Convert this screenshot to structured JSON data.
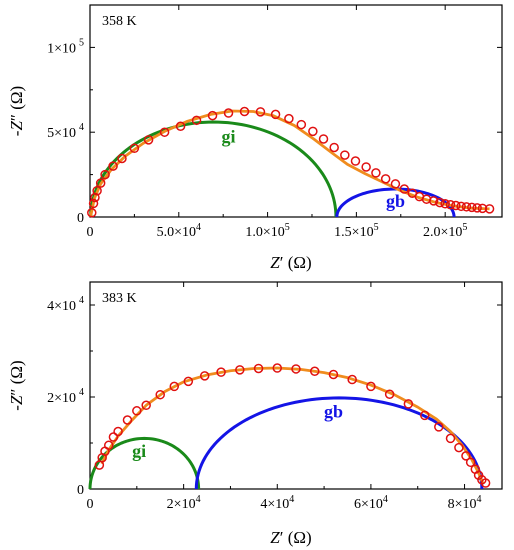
{
  "chart_data": [
    {
      "type": "scatter",
      "panel": "top",
      "annotation": "358 K",
      "xlabel_main": "Z",
      "xlabel_prime": "′",
      "xlabel_unit": "(Ω)",
      "ylabel_main": "-Z",
      "ylabel_prime": "″",
      "ylabel_unit": "(Ω)",
      "xlim": [
        0,
        232000
      ],
      "ylim": [
        0,
        125000
      ],
      "xticks": [
        {
          "value": 0,
          "mant": "0",
          "exp": ""
        },
        {
          "value": 50000,
          "mant": "5.0×10",
          "exp": "4"
        },
        {
          "value": 100000,
          "mant": "1.0×10",
          "exp": "5"
        },
        {
          "value": 150000,
          "mant": "1.5×10",
          "exp": "5"
        },
        {
          "value": 200000,
          "mant": "2.0×10",
          "exp": "5"
        }
      ],
      "yticks": [
        {
          "value": 0,
          "mant": "0",
          "exp": ""
        },
        {
          "value": 50000,
          "mant": "5×10",
          "exp": "4"
        },
        {
          "value": 100000,
          "mant": "1×10",
          "exp": "5"
        }
      ],
      "arcs": [
        {
          "name": "gi",
          "color": "#1a8a1a",
          "center": 69500,
          "radius": 69000,
          "height": 56000,
          "label_x": 78000,
          "label_y": 44000
        },
        {
          "name": "gb",
          "color": "#1414e6",
          "center": 172000,
          "radius": 33000,
          "height": 16500,
          "label_x": 172000,
          "label_y": 6000
        }
      ],
      "fit": {
        "color": "#f08c1e",
        "points": [
          [
            400,
            600
          ],
          [
            2500,
            11000
          ],
          [
            6000,
            19500
          ],
          [
            12000,
            28000
          ],
          [
            20000,
            36000
          ],
          [
            30000,
            43500
          ],
          [
            42000,
            50500
          ],
          [
            55000,
            56500
          ],
          [
            68000,
            60500
          ],
          [
            80000,
            62500
          ],
          [
            92000,
            62200
          ],
          [
            103000,
            59800
          ],
          [
            115000,
            54000
          ],
          [
            126000,
            46000
          ],
          [
            136000,
            38000
          ],
          [
            145000,
            31000
          ],
          [
            155000,
            25500
          ],
          [
            165000,
            20500
          ],
          [
            175000,
            15500
          ],
          [
            185000,
            11500
          ],
          [
            195000,
            8500
          ],
          [
            205000,
            6500
          ],
          [
            215000,
            5200
          ],
          [
            225000,
            4800
          ]
        ]
      },
      "points": [
        [
          1000,
          2500
        ],
        [
          2000,
          8000
        ],
        [
          2800,
          11500
        ],
        [
          4000,
          15500
        ],
        [
          6000,
          20000
        ],
        [
          8500,
          25000
        ],
        [
          13000,
          30000
        ],
        [
          18000,
          34500
        ],
        [
          25000,
          40500
        ],
        [
          33000,
          45500
        ],
        [
          42000,
          50000
        ],
        [
          51000,
          53500
        ],
        [
          60000,
          57000
        ],
        [
          69000,
          59800
        ],
        [
          78000,
          61300
        ],
        [
          87000,
          62200
        ],
        [
          96000,
          62000
        ],
        [
          104500,
          60500
        ],
        [
          112000,
          58000
        ],
        [
          119000,
          54500
        ],
        [
          125500,
          50500
        ],
        [
          131500,
          46000
        ],
        [
          137500,
          41000
        ],
        [
          143500,
          36500
        ],
        [
          149500,
          33000
        ],
        [
          155500,
          29500
        ],
        [
          161000,
          26000
        ],
        [
          166500,
          22500
        ],
        [
          172000,
          19500
        ],
        [
          177000,
          16500
        ],
        [
          181500,
          14000
        ],
        [
          185500,
          12000
        ],
        [
          189500,
          10500
        ],
        [
          193500,
          9500
        ],
        [
          197000,
          8500
        ],
        [
          200000,
          7800
        ],
        [
          203000,
          7200
        ],
        [
          206000,
          6800
        ],
        [
          209000,
          6300
        ],
        [
          212000,
          6000
        ],
        [
          215000,
          5700
        ],
        [
          218000,
          5400
        ],
        [
          221000,
          5100
        ],
        [
          225000,
          4800
        ]
      ],
      "point_color": "#e01010"
    },
    {
      "type": "scatter",
      "panel": "bottom",
      "annotation": "383 K",
      "xlabel_main": "Z",
      "xlabel_prime": "′",
      "xlabel_unit": "(Ω)",
      "ylabel_main": "-Z",
      "ylabel_prime": "″",
      "ylabel_unit": "(Ω)",
      "xlim": [
        0,
        88000
      ],
      "ylim": [
        0,
        45000
      ],
      "xticks": [
        {
          "value": 0,
          "mant": "0",
          "exp": ""
        },
        {
          "value": 20000,
          "mant": "2×10",
          "exp": "4"
        },
        {
          "value": 40000,
          "mant": "4×10",
          "exp": "4"
        },
        {
          "value": 60000,
          "mant": "6×10",
          "exp": "4"
        },
        {
          "value": 80000,
          "mant": "8×10",
          "exp": "4"
        }
      ],
      "yticks": [
        {
          "value": 0,
          "mant": "0",
          "exp": ""
        },
        {
          "value": 20000,
          "mant": "2×10",
          "exp": "4"
        },
        {
          "value": 40000,
          "mant": "4×10",
          "exp": "4"
        }
      ],
      "arcs": [
        {
          "name": "gi",
          "color": "#1a8a1a",
          "center": 11600,
          "radius": 11600,
          "height": 11000,
          "label_x": 10500,
          "label_y": 7000
        },
        {
          "name": "gb",
          "color": "#1414e6",
          "center": 53200,
          "radius": 30500,
          "height": 19800,
          "label_x": 52000,
          "label_y": 15500
        }
      ],
      "fit": {
        "color": "#f08c1e",
        "points": [
          [
            2500,
            5500
          ],
          [
            4000,
            8500
          ],
          [
            6000,
            11500
          ],
          [
            9000,
            15000
          ],
          [
            12000,
            18200
          ],
          [
            16000,
            21200
          ],
          [
            20000,
            23300
          ],
          [
            25000,
            24800
          ],
          [
            30000,
            25700
          ],
          [
            35000,
            26200
          ],
          [
            40000,
            26300
          ],
          [
            45000,
            26000
          ],
          [
            50000,
            25300
          ],
          [
            55000,
            24200
          ],
          [
            60000,
            22600
          ],
          [
            65000,
            20500
          ],
          [
            70000,
            17800
          ],
          [
            74000,
            15200
          ],
          [
            77000,
            12500
          ],
          [
            79500,
            9500
          ],
          [
            81500,
            6500
          ],
          [
            83000,
            3500
          ],
          [
            84000,
            1000
          ]
        ]
      },
      "points": [
        [
          2000,
          5200
        ],
        [
          2600,
          6800
        ],
        [
          3200,
          8200
        ],
        [
          4000,
          9500
        ],
        [
          5000,
          11300
        ],
        [
          6000,
          12500
        ],
        [
          8000,
          15000
        ],
        [
          10000,
          17000
        ],
        [
          12000,
          18200
        ],
        [
          15000,
          20500
        ],
        [
          18000,
          22300
        ],
        [
          21000,
          23400
        ],
        [
          24500,
          24600
        ],
        [
          28000,
          25400
        ],
        [
          32000,
          25900
        ],
        [
          36000,
          26200
        ],
        [
          40000,
          26300
        ],
        [
          44000,
          26100
        ],
        [
          48000,
          25600
        ],
        [
          52000,
          24900
        ],
        [
          56000,
          23800
        ],
        [
          60000,
          22300
        ],
        [
          64000,
          20600
        ],
        [
          68000,
          18500
        ],
        [
          71500,
          16000
        ],
        [
          74500,
          13500
        ],
        [
          77000,
          11000
        ],
        [
          78800,
          9000
        ],
        [
          80300,
          7200
        ],
        [
          81300,
          5800
        ],
        [
          82300,
          4300
        ],
        [
          83000,
          3000
        ],
        [
          83700,
          2000
        ],
        [
          84500,
          1300
        ]
      ],
      "point_color": "#e01010"
    }
  ]
}
